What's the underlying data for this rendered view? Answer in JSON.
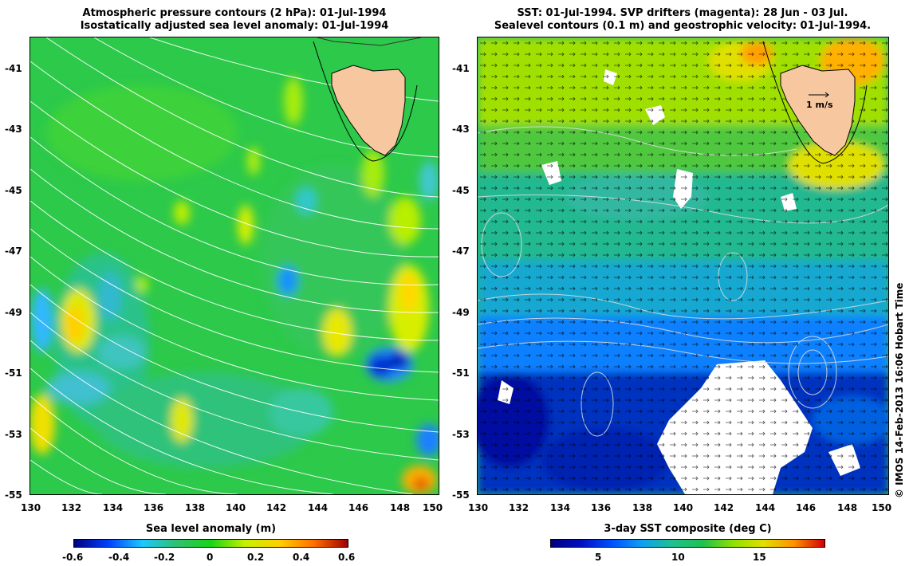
{
  "left_panel": {
    "title_line1": "Atmospheric pressure contours (2 hPa): 01-Jul-1994",
    "title_line2": "Isostatically adjusted sea level anomaly: 01-Jul-1994",
    "colorbar_label": "Sea level anomaly (m)",
    "colorbar_ticks": [
      "-0.6",
      "-0.4",
      "-0.2",
      "0",
      "0.2",
      "0.4",
      "0.6"
    ]
  },
  "right_panel": {
    "title_line1": "SST: 01-Jul-1994. SVP drifters (magenta): 28 Jun - 03 Jul.",
    "title_line2": "Sealevel contours (0.1 m) and geostrophic velocity: 01-Jul-1994.",
    "scale_arrow_label": "1 m/s",
    "colorbar_label": "3-day SST composite (deg C)",
    "colorbar_ticks": [
      "5",
      "10",
      "15"
    ]
  },
  "axes": {
    "lat_ticks": [
      "-41",
      "-43",
      "-45",
      "-47",
      "-49",
      "-51",
      "-53",
      "-55"
    ],
    "lon_ticks": [
      "130",
      "132",
      "134",
      "136",
      "138",
      "140",
      "142",
      "144",
      "146",
      "148",
      "150"
    ]
  },
  "credit": "© IMOS 14-Feb-2013 16:06 Hobart Time",
  "colors": {
    "land": "#f7c8a0",
    "sla_colormap": [
      "#00007f",
      "#0040ff",
      "#1ec8ff",
      "#30c070",
      "#18d418",
      "#c8f000",
      "#ffd000",
      "#ff7000",
      "#a00000"
    ],
    "sst_colormap": [
      "#00007f",
      "#0010c0",
      "#0050ff",
      "#10a0f0",
      "#20c090",
      "#20c050",
      "#90e000",
      "#e0e000",
      "#ff9000",
      "#d00000"
    ]
  }
}
